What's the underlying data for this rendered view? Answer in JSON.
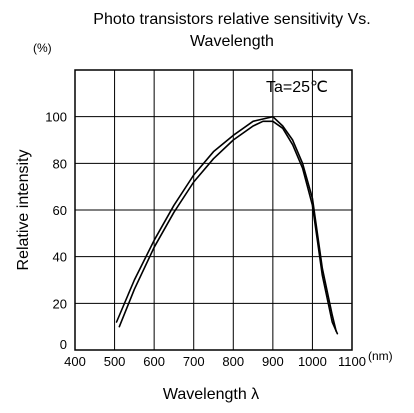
{
  "chart_data": {
    "type": "line",
    "title": "Photo transistors relative sensitivity Vs. Wavelength",
    "title_lines": [
      "Photo transistors relative sensitivity Vs.",
      "Wavelength"
    ],
    "xlabel": "Wavelength λ",
    "ylabel": "Relative intensity",
    "x_unit": "(nm)",
    "y_unit": "(%)",
    "annotation": "Ta=25℃",
    "xlim": [
      400,
      1100
    ],
    "ylim": [
      0,
      120
    ],
    "x_ticks": [
      400,
      500,
      600,
      700,
      800,
      900,
      1000,
      1100
    ],
    "y_ticks": [
      0,
      20,
      40,
      60,
      80,
      100
    ],
    "x_tick_labels": [
      "400",
      "500",
      "600",
      "700",
      "800",
      "900",
      "1000",
      "1100"
    ],
    "y_tick_labels": [
      "0",
      "20",
      "40",
      "60",
      "80",
      "100"
    ],
    "grid": true,
    "series": [
      {
        "color": "#000000",
        "x": [
          505,
          550,
          600,
          650,
          700,
          750,
          800,
          850,
          875,
          900,
          925,
          950,
          975,
          1000,
          1025,
          1050,
          1060
        ],
        "y": [
          12,
          30,
          47,
          62,
          75,
          85,
          92,
          98,
          99,
          100,
          96,
          90,
          80,
          65,
          35,
          15,
          8
        ]
      },
      {
        "color": "#000000",
        "x": [
          512,
          550,
          600,
          650,
          700,
          750,
          800,
          850,
          875,
          900,
          925,
          950,
          975,
          1000,
          1025,
          1050,
          1063
        ],
        "y": [
          10,
          26,
          44,
          59,
          72,
          82,
          90,
          96,
          98,
          98,
          95,
          88,
          78,
          62,
          32,
          12,
          7
        ]
      }
    ]
  }
}
